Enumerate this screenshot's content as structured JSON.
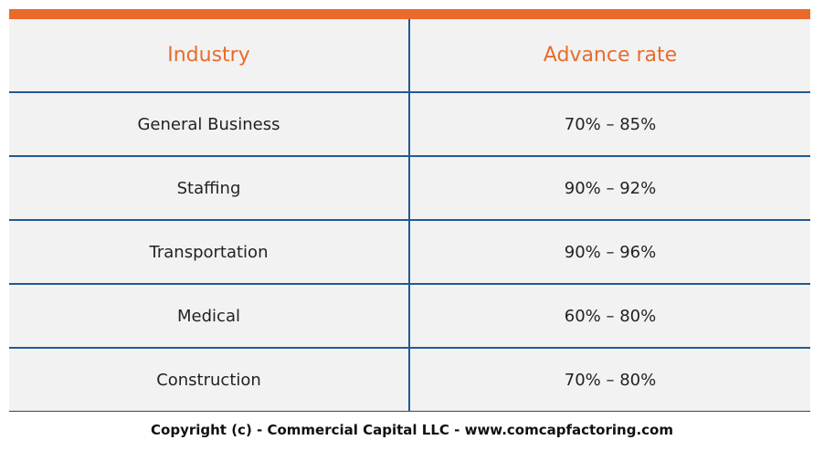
{
  "table": {
    "headers": [
      "Industry",
      "Advance rate"
    ],
    "rows": [
      [
        "General Business",
        "70% – 85%"
      ],
      [
        "Staffing",
        "90% – 92%"
      ],
      [
        "Transportation",
        "90% – 96%"
      ],
      [
        "Medical",
        "60% – 80%"
      ],
      [
        "Construction",
        "70% – 80%"
      ]
    ]
  },
  "footer": "Copyright (c) - Commercial Capital LLC - www.comcapfactoring.com"
}
